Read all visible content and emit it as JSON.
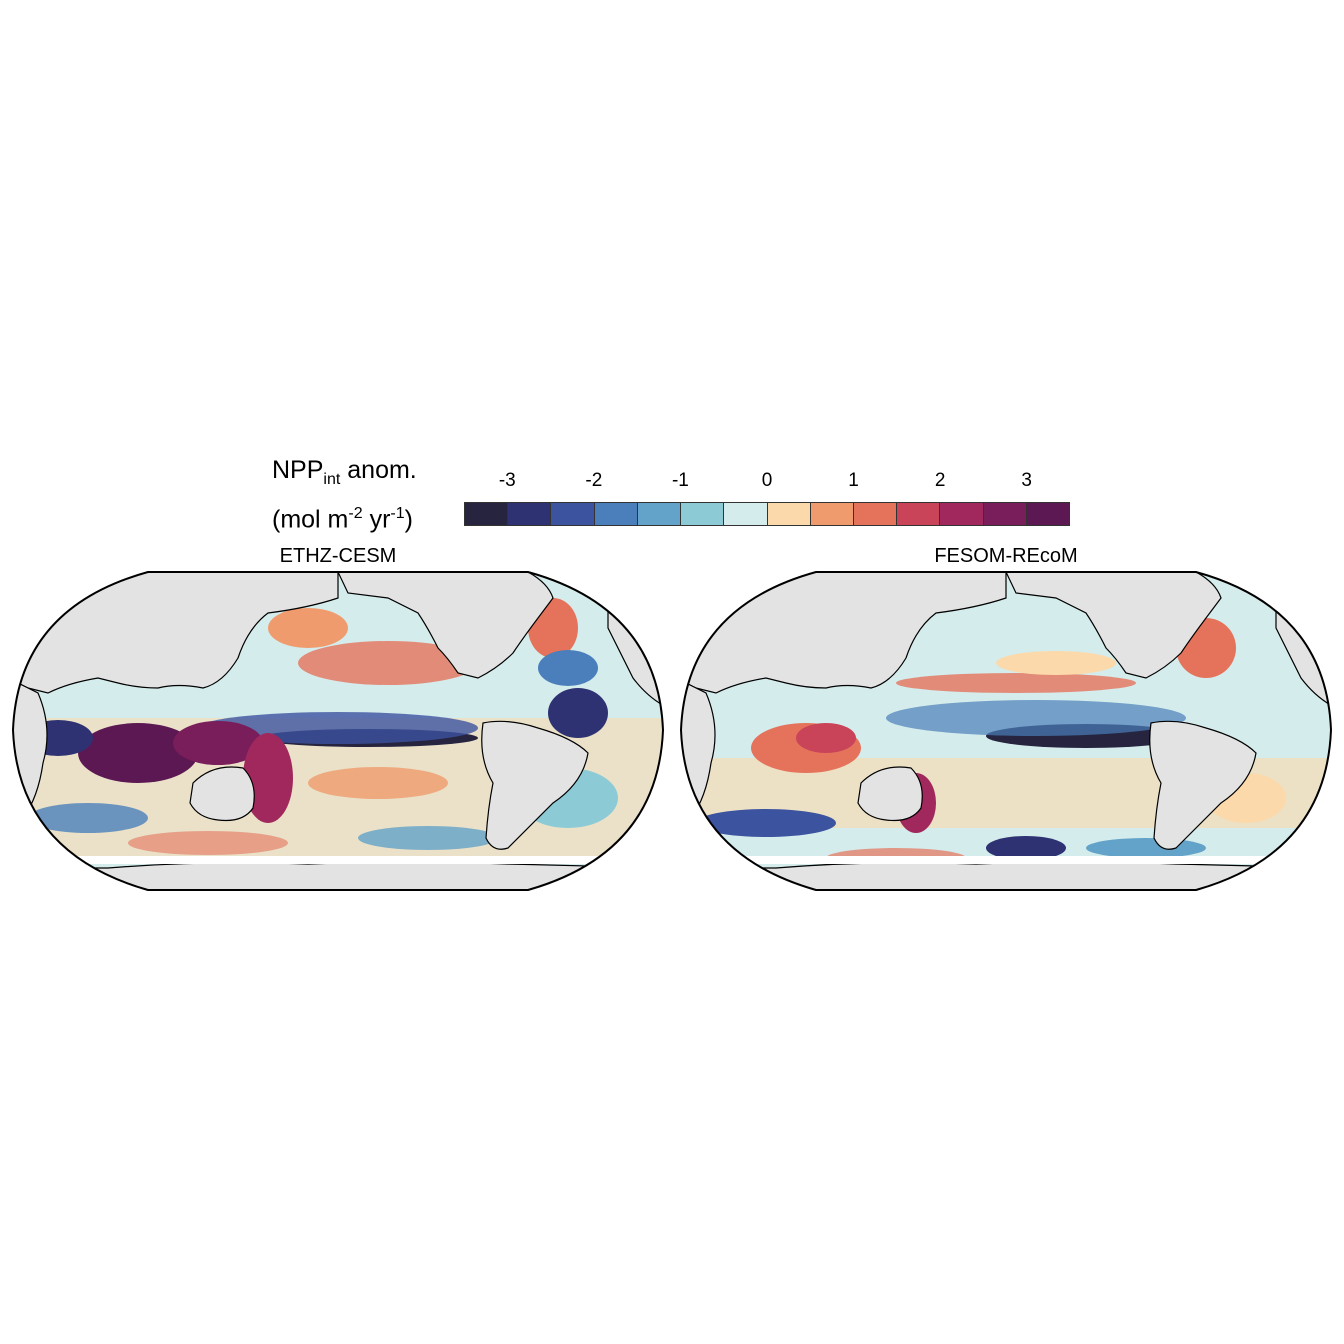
{
  "legend": {
    "title_main": "NPP",
    "title_sub": "int",
    "title_rest": " anom.",
    "unit_open": "(mol m",
    "unit_exp1": "-2",
    "unit_mid": " yr",
    "unit_exp2": "-1",
    "unit_close": ")",
    "ticks": [
      "-3",
      "-2",
      "-1",
      "0",
      "1",
      "2",
      "3"
    ],
    "colors": [
      "#26243f",
      "#2f3272",
      "#3c53a0",
      "#4a7fbb",
      "#63a3c9",
      "#8ccbd6",
      "#d5ecec",
      "#fcd9ab",
      "#f09b6d",
      "#e5735b",
      "#c94459",
      "#a1285c",
      "#791d5b",
      "#5c1852"
    ]
  },
  "panels": [
    {
      "title": "ETHZ-CESM"
    },
    {
      "title": "FESOM-REcoM"
    }
  ],
  "map_colors": {
    "land": "#e3e3e3",
    "ocean_base": "#d5ecec",
    "coast": "#000000"
  }
}
